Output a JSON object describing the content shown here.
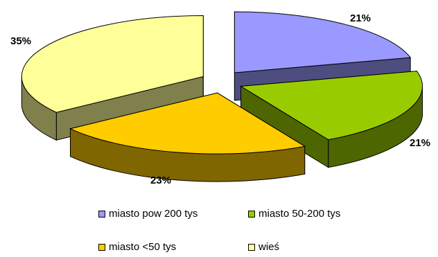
{
  "chart_data": {
    "type": "pie",
    "style": "3d-exploded",
    "categories": [
      "miasto pow 200 tys",
      "miasto 50-200 tys",
      "miasto <50 tys",
      "wieś"
    ],
    "values": [
      21,
      21,
      23,
      35
    ],
    "labels": [
      "21%",
      "21%",
      "23%",
      "35%"
    ],
    "colors": {
      "top": [
        "#9999FF",
        "#99CC00",
        "#FFCC00",
        "#FFFF99"
      ],
      "side": [
        "#4D4D80",
        "#4D6600",
        "#806600",
        "#80804D"
      ]
    },
    "legend_placement": "bottom"
  }
}
